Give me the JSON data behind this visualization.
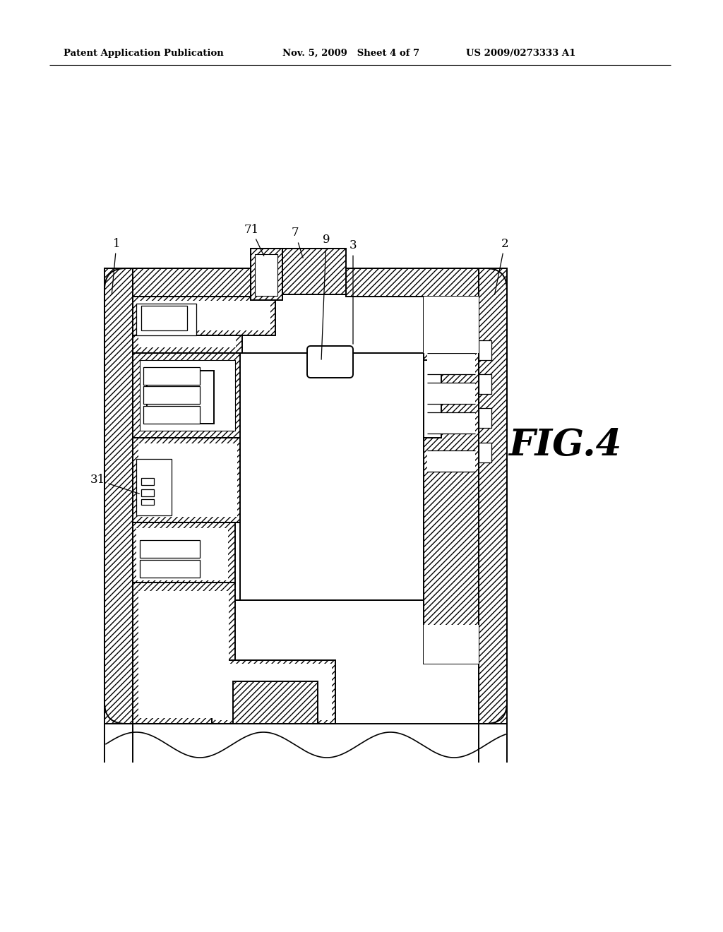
{
  "background_color": "#ffffff",
  "header_left": "Patent Application Publication",
  "header_mid": "Nov. 5, 2009   Sheet 4 of 7",
  "header_right": "US 2009/0273333 A1",
  "fig_label": "FIG.4",
  "lw": 1.4,
  "hlw": 0.7
}
